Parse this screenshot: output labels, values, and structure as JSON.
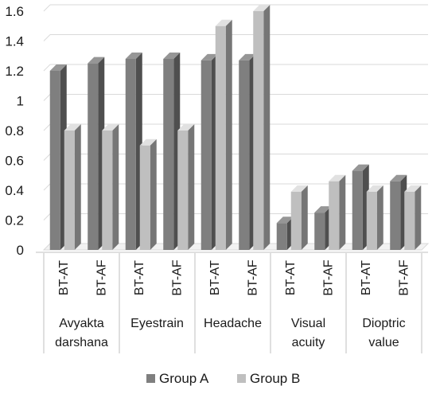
{
  "chart_data": {
    "type": "bar",
    "style": "3d-clustered-column",
    "title": "",
    "xlabel": "",
    "ylabel": "",
    "ylim": [
      0,
      1.6
    ],
    "yticks": [
      "0",
      "0.2",
      "0.4",
      "0.6",
      "0.8",
      "1",
      "1.2",
      "1.4",
      "1.6"
    ],
    "grid": true,
    "legend_position": "bottom",
    "groups": [
      {
        "lines": [
          "Avyakta",
          "darshana"
        ],
        "categories": [
          "BT-AT",
          "BT-AF"
        ]
      },
      {
        "lines": [
          "Eyestrain"
        ],
        "categories": [
          "BT-AT",
          "BT-AF"
        ]
      },
      {
        "lines": [
          "Headache"
        ],
        "categories": [
          "BT-AT",
          "BT-AF"
        ]
      },
      {
        "lines": [
          "Visual",
          "acuity"
        ],
        "categories": [
          "BT-AT",
          "BT-AF"
        ]
      },
      {
        "lines": [
          "Dioptric",
          "value"
        ],
        "categories": [
          "BT-AT",
          "BT-AF"
        ]
      }
    ],
    "series": [
      {
        "name": "Group A",
        "color": "#7f7f7f",
        "values": [
          1.2,
          1.25,
          1.28,
          1.28,
          1.27,
          1.27,
          0.18,
          0.25,
          0.53,
          0.46
        ]
      },
      {
        "name": "Group B",
        "color": "#bfbfbf",
        "values": [
          0.8,
          0.8,
          0.7,
          0.8,
          1.5,
          1.6,
          0.39,
          0.46,
          0.39,
          0.39
        ]
      }
    ]
  }
}
